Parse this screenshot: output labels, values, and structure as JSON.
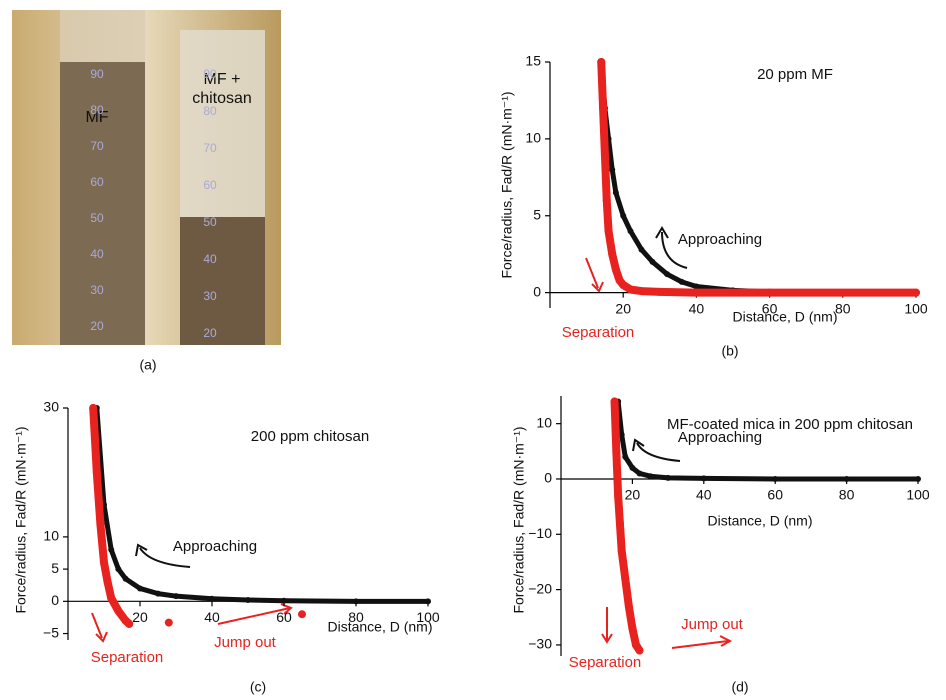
{
  "photo": {
    "panel": "(a)",
    "left_label": "MF",
    "right_label": [
      "MF +",
      "chitosan"
    ],
    "left_scale": [
      "90",
      "80",
      "70",
      "60",
      "50",
      "40",
      "30",
      "20"
    ],
    "right_scale": [
      "90",
      "80",
      "70",
      "60",
      "50",
      "40",
      "30",
      "20"
    ]
  },
  "chart_data": [
    {
      "type": "scatter",
      "panel": "(b)",
      "xlabel": "Distance, D (nm)",
      "ylabel": "Force/radius, Fad/R (mN·m⁻¹)",
      "xlim": [
        0,
        100
      ],
      "ylim": [
        -1,
        15
      ],
      "xticks": [
        20,
        40,
        60,
        80,
        100
      ],
      "yticks": [
        0,
        5,
        10,
        15
      ],
      "annotations": [
        {
          "text": "20 ppm MF",
          "color": "#111111"
        },
        {
          "text": "Approaching",
          "color": "#111111"
        },
        {
          "text": "Separation",
          "color": "#e8231f"
        }
      ],
      "series": [
        {
          "color": "#111111",
          "line": true,
          "x": [
            14,
            15,
            16,
            17,
            18,
            20,
            22,
            25,
            28,
            32,
            36,
            40,
            50,
            60,
            80,
            100
          ],
          "values": [
            15,
            12,
            10,
            8,
            6.5,
            5,
            4,
            2.8,
            2,
            1.2,
            0.7,
            0.4,
            0.15,
            0.05,
            0,
            0
          ]
        },
        {
          "color": "#e8231f",
          "line": true,
          "x": [
            14,
            14.5,
            15,
            15.5,
            16,
            17,
            18,
            19,
            20,
            22,
            25,
            30,
            40,
            60,
            100
          ],
          "values": [
            15,
            12,
            9,
            6,
            4,
            2.5,
            1.5,
            0.8,
            0.5,
            0.2,
            0.1,
            0.05,
            0,
            0,
            0
          ]
        }
      ]
    },
    {
      "type": "scatter",
      "panel": "(c)",
      "xlabel": "Distance, D (nm)",
      "ylabel": "Force/radius, Fad/R (mN·m⁻¹)",
      "xlim": [
        0,
        100
      ],
      "ylim": [
        -6,
        30
      ],
      "xticks": [
        20,
        40,
        60,
        80,
        100
      ],
      "yticks": [
        {
          "value": -5,
          "label": "−5"
        },
        0,
        5,
        10,
        30
      ],
      "annotations": [
        {
          "text": "200 ppm chitosan",
          "color": "#111111"
        },
        {
          "text": "Approaching",
          "color": "#111111"
        },
        {
          "text": "Separation",
          "color": "#e8231f"
        },
        {
          "text": "Jump out",
          "color": "#e8231f"
        }
      ],
      "series": [
        {
          "color": "#111111",
          "line": true,
          "x": [
            8,
            10,
            12,
            14,
            16,
            20,
            25,
            30,
            40,
            50,
            60,
            80,
            100
          ],
          "values": [
            30,
            15,
            8,
            5,
            3.5,
            2,
            1.2,
            0.8,
            0.4,
            0.2,
            0.1,
            0,
            0
          ]
        },
        {
          "color": "#e8231f",
          "line": true,
          "x": [
            7,
            8,
            9,
            10,
            11,
            12,
            14,
            16,
            17
          ],
          "values": [
            30,
            20,
            12,
            6,
            3,
            0.5,
            -1.5,
            -3,
            -3.5
          ]
        },
        {
          "color": "#e8231f",
          "line": false,
          "x": [
            28,
            65
          ],
          "values": [
            -3.3,
            -2
          ]
        }
      ]
    },
    {
      "type": "scatter",
      "panel": "(d)",
      "xlabel": "Distance, D (nm)",
      "ylabel": "Force/radius, Fad/R (mN·m⁻¹)",
      "xlim": [
        0,
        100
      ],
      "ylim": [
        -32,
        15
      ],
      "xticks": [
        20,
        40,
        60,
        80,
        100
      ],
      "yticks": [
        {
          "value": -30,
          "label": "−30"
        },
        {
          "value": -20,
          "label": "−20"
        },
        {
          "value": -10,
          "label": "−10"
        },
        0,
        10
      ],
      "annotations": [
        {
          "text": "MF-coated mica in 200 ppm chitosan",
          "color": "#111111"
        },
        {
          "text": "Approaching",
          "color": "#111111"
        },
        {
          "text": "Separation",
          "color": "#e8231f"
        },
        {
          "text": "Jump out",
          "color": "#e8231f"
        }
      ],
      "series": [
        {
          "color": "#111111",
          "line": true,
          "x": [
            16,
            17,
            18,
            20,
            22,
            25,
            30,
            40,
            60,
            80,
            100
          ],
          "values": [
            14,
            8,
            4,
            2,
            1,
            0.5,
            0.2,
            0.1,
            0,
            0,
            0
          ]
        },
        {
          "color": "#e8231f",
          "line": true,
          "x": [
            15,
            15.5,
            16,
            16.5,
            17,
            18,
            19,
            20,
            21,
            22
          ],
          "values": [
            14,
            5,
            -3,
            -8,
            -13,
            -18,
            -23,
            -27,
            -30,
            -31
          ]
        }
      ]
    }
  ]
}
